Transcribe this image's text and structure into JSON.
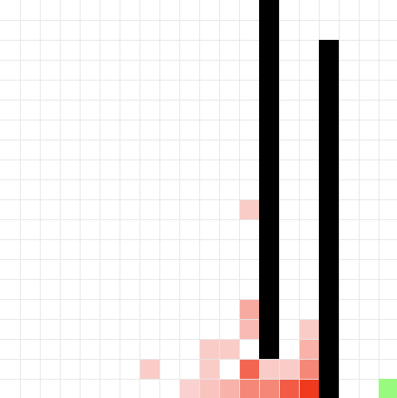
{
  "game": {
    "type": "grid-pathfinding",
    "grid": {
      "columns": 20,
      "rows": 20,
      "line_color": "#e6e6e6",
      "background_color": "#ffffff"
    },
    "walls": {
      "color": "#000000",
      "cells": [
        [
          13,
          0
        ],
        [
          13,
          1
        ],
        [
          13,
          2
        ],
        [
          13,
          3
        ],
        [
          13,
          4
        ],
        [
          13,
          5
        ],
        [
          13,
          6
        ],
        [
          13,
          7
        ],
        [
          13,
          8
        ],
        [
          13,
          9
        ],
        [
          13,
          10
        ],
        [
          13,
          11
        ],
        [
          13,
          12
        ],
        [
          13,
          13
        ],
        [
          13,
          14
        ],
        [
          13,
          15
        ],
        [
          13,
          16
        ],
        [
          13,
          17
        ],
        [
          16,
          2
        ],
        [
          16,
          3
        ],
        [
          16,
          4
        ],
        [
          16,
          5
        ],
        [
          16,
          6
        ],
        [
          16,
          7
        ],
        [
          16,
          8
        ],
        [
          16,
          9
        ],
        [
          16,
          10
        ],
        [
          16,
          11
        ],
        [
          16,
          12
        ],
        [
          16,
          13
        ],
        [
          16,
          14
        ],
        [
          16,
          15
        ],
        [
          16,
          16
        ],
        [
          16,
          17
        ],
        [
          16,
          18
        ],
        [
          16,
          19
        ]
      ]
    },
    "goal": {
      "color": "#98fb80",
      "cell": [
        19,
        19
      ]
    },
    "explored": {
      "color_low": "#fbe6e6",
      "color_high": "#f03a1e",
      "cells": [
        {
          "col": 12,
          "row": 10,
          "intensity": 0.15
        },
        {
          "col": 12,
          "row": 15,
          "intensity": 0.35
        },
        {
          "col": 12,
          "row": 16,
          "intensity": 0.25
        },
        {
          "col": 15,
          "row": 16,
          "intensity": 0.15
        },
        {
          "col": 10,
          "row": 17,
          "intensity": 0.15
        },
        {
          "col": 11,
          "row": 17,
          "intensity": 0.15
        },
        {
          "col": 15,
          "row": 17,
          "intensity": 0.3
        },
        {
          "col": 7,
          "row": 18,
          "intensity": 0.15
        },
        {
          "col": 10,
          "row": 18,
          "intensity": 0.15
        },
        {
          "col": 12,
          "row": 18,
          "intensity": 0.75
        },
        {
          "col": 13,
          "row": 18,
          "intensity": 0.15
        },
        {
          "col": 14,
          "row": 18,
          "intensity": 0.15
        },
        {
          "col": 15,
          "row": 18,
          "intensity": 0.55
        },
        {
          "col": 9,
          "row": 19,
          "intensity": 0.12
        },
        {
          "col": 10,
          "row": 19,
          "intensity": 0.2
        },
        {
          "col": 11,
          "row": 19,
          "intensity": 0.3
        },
        {
          "col": 12,
          "row": 19,
          "intensity": 0.55
        },
        {
          "col": 13,
          "row": 19,
          "intensity": 0.55
        },
        {
          "col": 14,
          "row": 19,
          "intensity": 0.8
        },
        {
          "col": 15,
          "row": 19,
          "intensity": 1.0
        }
      ]
    }
  }
}
